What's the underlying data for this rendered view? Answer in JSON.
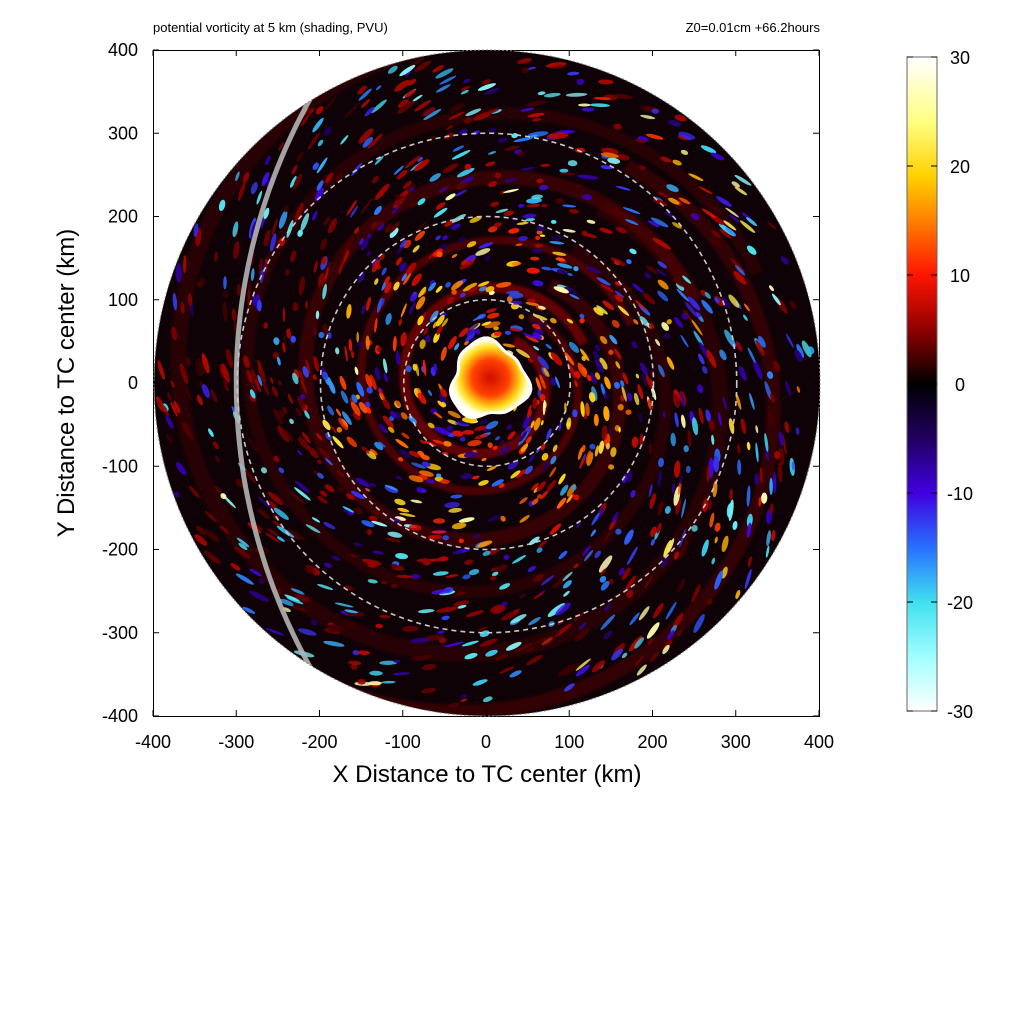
{
  "chart_data": {
    "type": "heatmap",
    "title": "potential vorticity at 5 km (shading, PVU)",
    "subtitle": "Z0=0.01cm  +66.2hours",
    "xlabel": "X Distance to TC center (km)",
    "ylabel": "Y Distance to TC center (km)",
    "xlim": [
      -400,
      400
    ],
    "ylim": [
      -400,
      400
    ],
    "x_ticks": [
      -400,
      -300,
      -200,
      -100,
      0,
      100,
      200,
      300,
      400
    ],
    "y_ticks": [
      -400,
      -300,
      -200,
      -100,
      0,
      100,
      200,
      300,
      400
    ],
    "colorbar": {
      "range": [
        -30,
        30
      ],
      "ticks": [
        30,
        20,
        10,
        0,
        -10,
        -20,
        -30
      ],
      "colors": [
        {
          "value": 30,
          "color": "#ffffff"
        },
        {
          "value": 24,
          "color": "#ffff80"
        },
        {
          "value": 19,
          "color": "#ffd000"
        },
        {
          "value": 15,
          "color": "#ff8000"
        },
        {
          "value": 10,
          "color": "#ff1500"
        },
        {
          "value": 5,
          "color": "#900000"
        },
        {
          "value": 0,
          "color": "#000000"
        },
        {
          "value": -5,
          "color": "#200060"
        },
        {
          "value": -10,
          "color": "#4000e0"
        },
        {
          "value": -15,
          "color": "#2870ff"
        },
        {
          "value": -20,
          "color": "#40e0f0"
        },
        {
          "value": -25,
          "color": "#a0ffff"
        },
        {
          "value": -30,
          "color": "#ffffff"
        }
      ]
    },
    "domain_radius_km": 400,
    "range_rings_km": [
      100,
      200,
      300
    ],
    "eye": {
      "x_center_km": 3,
      "y_center_km": 3,
      "radius_km": 45,
      "core_value": 10,
      "rim_value": 30
    },
    "gray_arc": {
      "center_km": [
        400,
        0
      ],
      "radius_km": 700
    }
  }
}
